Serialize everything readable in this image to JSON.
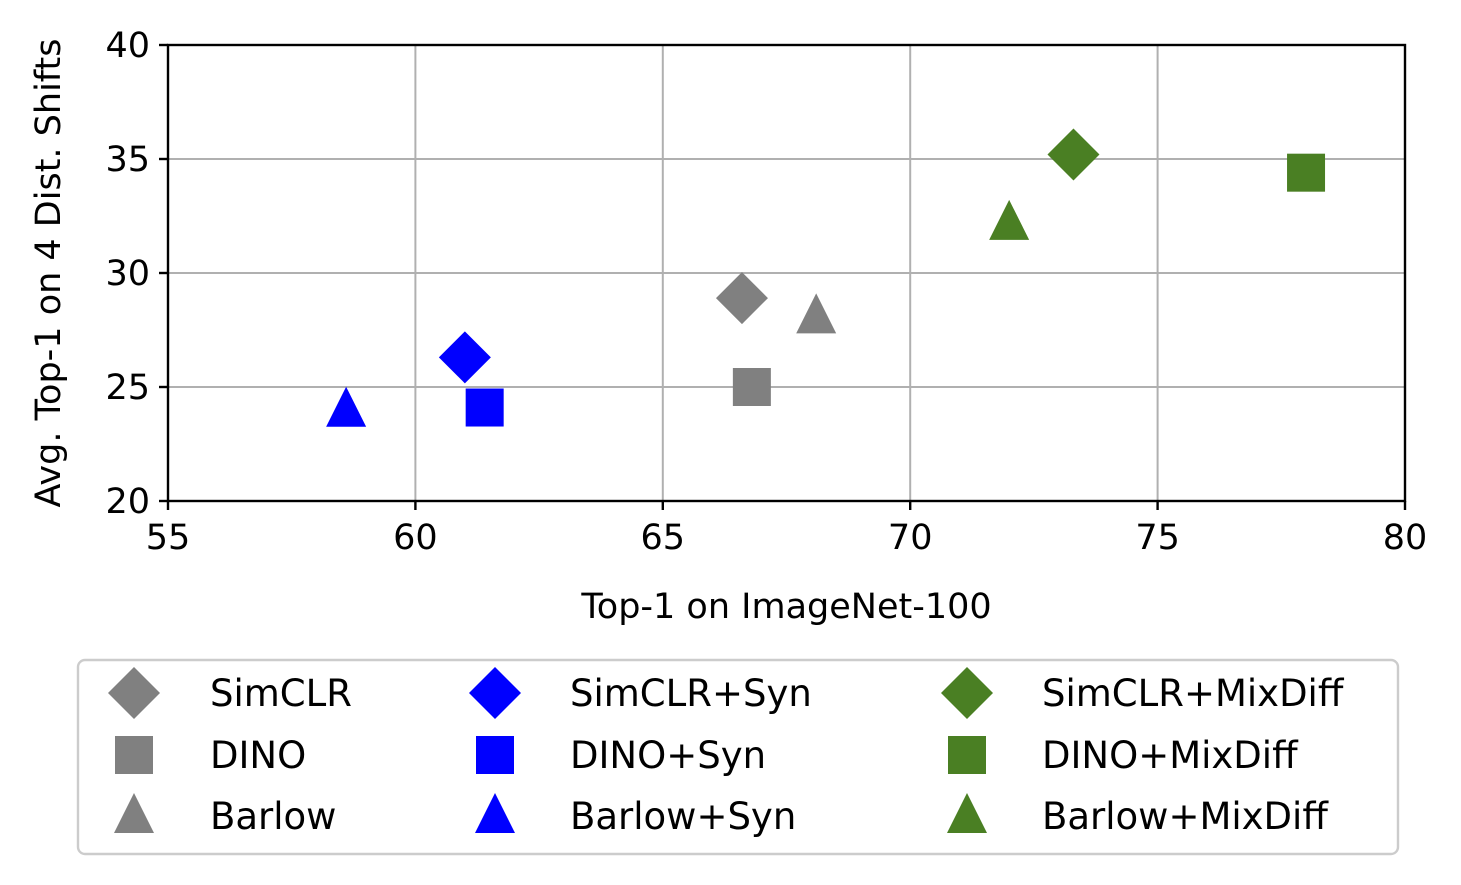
{
  "chart_data": {
    "type": "scatter",
    "title": "",
    "xlabel": "Top-1 on ImageNet-100",
    "ylabel": "Avg. Top-1 on 4 Dist. Shifts",
    "xlim": [
      55,
      80
    ],
    "ylim": [
      20,
      40
    ],
    "xticks": [
      55,
      60,
      65,
      70,
      75,
      80
    ],
    "yticks": [
      20,
      25,
      30,
      35,
      40
    ],
    "grid": true,
    "legend_position": "bottom, outside plot",
    "legend_columns": 3,
    "series": [
      {
        "name": "SimCLR",
        "marker": "diamond",
        "color": "#808080",
        "x": 66.6,
        "y": 28.9
      },
      {
        "name": "DINO",
        "marker": "square",
        "color": "#808080",
        "x": 66.8,
        "y": 25.0
      },
      {
        "name": "Barlow",
        "marker": "triangle",
        "color": "#808080",
        "x": 68.1,
        "y": 28.1
      },
      {
        "name": "SimCLR+Syn",
        "marker": "diamond",
        "color": "#0000ff",
        "x": 61.0,
        "y": 26.3
      },
      {
        "name": "DINO+Syn",
        "marker": "square",
        "color": "#0000ff",
        "x": 61.4,
        "y": 24.1
      },
      {
        "name": "Barlow+Syn",
        "marker": "triangle",
        "color": "#0000ff",
        "x": 58.6,
        "y": 24.0
      },
      {
        "name": "SimCLR+MixDiff",
        "marker": "diamond",
        "color": "#4a7f23",
        "x": 73.3,
        "y": 35.2
      },
      {
        "name": "DINO+MixDiff",
        "marker": "square",
        "color": "#4a7f23",
        "x": 78.0,
        "y": 34.4
      },
      {
        "name": "Barlow+MixDiff",
        "marker": "triangle",
        "color": "#4a7f23",
        "x": 72.0,
        "y": 32.2
      }
    ]
  }
}
